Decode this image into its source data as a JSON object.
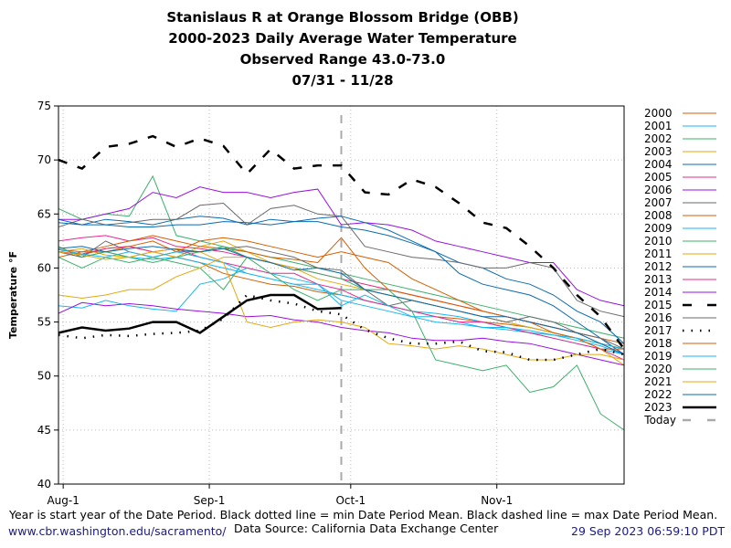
{
  "title_lines": [
    "Stanislaus R at Orange Blossom Bridge (OBB)",
    "2000-2023 Daily Average Water Temperature",
    "Observed Range 43.0-73.0",
    "07/31 - 11/28"
  ],
  "footer": {
    "note": "Year is start year of the Date Period. Black dotted line = min Date Period Mean. Black dashed line = max Date Period Mean.",
    "link": "www.cbr.washington.edu/sacramento/",
    "source": "Data Source: California Data Exchange Center",
    "timestamp": "29 Sep 2023 06:59:10 PDT"
  },
  "chart_data": {
    "type": "line",
    "ylabel": "Temperature °F",
    "xlabel": "",
    "ylim": [
      40,
      75
    ],
    "yticks": [
      40,
      45,
      50,
      55,
      60,
      65,
      70,
      75
    ],
    "x_range": [
      "07/31",
      "11/28"
    ],
    "x_days_step": 5,
    "xticks": [
      {
        "label": "Aug-1",
        "day": 1
      },
      {
        "label": "Sep-1",
        "day": 32
      },
      {
        "label": "Oct-1",
        "day": 62
      },
      {
        "label": "Nov-1",
        "day": 93
      }
    ],
    "grid": true,
    "legend": "right",
    "today": {
      "label": "Today",
      "day": 60,
      "color": "#aaaaaa"
    },
    "series": [
      {
        "name": "2000",
        "color": "#d55e00",
        "values": [
          61.5,
          61.2,
          61.8,
          62,
          61.5,
          61,
          60.5,
          59.5,
          59,
          58.5,
          58.3,
          57.8,
          57.5,
          57,
          56.5,
          56,
          55.5,
          55.3,
          55,
          54.8,
          54.5,
          54,
          53.5,
          53,
          52.5
        ]
      },
      {
        "name": "2001",
        "color": "#1ab6f0",
        "values": [
          61.5,
          61,
          61.5,
          61,
          60.8,
          61,
          60.5,
          60,
          59.5,
          59,
          58.5,
          58,
          57.5,
          57,
          56.5,
          56,
          55.8,
          55.5,
          55,
          54.5,
          54,
          53.8,
          53.3,
          52.8,
          52
        ]
      },
      {
        "name": "2002",
        "color": "#3bb06b",
        "values": [
          65.5,
          64.5,
          65,
          64.8,
          68.5,
          63,
          62.5,
          62,
          61.5,
          61,
          60.5,
          60,
          59.5,
          59,
          58.5,
          58,
          57.5,
          57,
          56.5,
          56,
          55.5,
          55,
          54.5,
          54,
          53.5
        ]
      },
      {
        "name": "2003",
        "color": "#e5a810",
        "values": [
          61.5,
          61.8,
          61.2,
          61,
          61.5,
          61,
          62,
          62.5,
          61.5,
          60.5,
          60,
          59.5,
          59,
          58.5,
          58,
          57.5,
          57,
          56.5,
          56,
          55.5,
          55,
          54.5,
          54,
          53,
          52.5
        ]
      },
      {
        "name": "2004",
        "color": "#0a6bb0",
        "values": [
          64.2,
          64,
          64.5,
          64.3,
          64,
          64.5,
          64.8,
          64.6,
          64,
          64.5,
          64.3,
          64.3,
          63.8,
          63.5,
          63,
          62.3,
          61.5,
          60.5,
          60,
          59,
          58.5,
          57.5,
          56,
          55,
          53
        ]
      },
      {
        "name": "2005",
        "color": "#e8278f",
        "values": [
          62.5,
          62.8,
          63,
          62.5,
          62.8,
          62,
          61.8,
          61.5,
          61,
          60.5,
          60,
          59.5,
          59,
          58.5,
          58,
          57.5,
          57,
          56.5,
          56,
          55.5,
          55,
          54.5,
          54,
          53.5,
          52
        ]
      },
      {
        "name": "2006",
        "color": "#9a10e0",
        "values": [
          64.5,
          64.5,
          65,
          65.5,
          67,
          66.5,
          67.5,
          67,
          67,
          66.5,
          67,
          67.3,
          64,
          64.2,
          64,
          63.5,
          62.5,
          62,
          61.5,
          61,
          60.5,
          60.5,
          58,
          57,
          56.5
        ]
      },
      {
        "name": "2007",
        "color": "#6a6a6a",
        "values": [
          63.8,
          64.5,
          64,
          64.2,
          64.5,
          64.5,
          65.8,
          66,
          64,
          65.5,
          65.8,
          65,
          64.8,
          62,
          61.5,
          61,
          60.8,
          60.5,
          60,
          60,
          60.5,
          60,
          57,
          56,
          55.5
        ]
      },
      {
        "name": "2008",
        "color": "#d55e00",
        "values": [
          61,
          61.5,
          62,
          62.5,
          63,
          62.5,
          62,
          61.8,
          61.5,
          61,
          60.8,
          60.5,
          62.8,
          60,
          58,
          57.5,
          57,
          56.5,
          56,
          55.5,
          55,
          54.5,
          54,
          53.5,
          53
        ]
      },
      {
        "name": "2009",
        "color": "#1ab6f0",
        "values": [
          56.5,
          56.3,
          57,
          56.5,
          56.2,
          56,
          58.5,
          59,
          60,
          59.5,
          59,
          58.5,
          57,
          56.5,
          56,
          55.5,
          55.5,
          55,
          54.5,
          54.3,
          54,
          53.5,
          53,
          52.5,
          52
        ]
      },
      {
        "name": "2010",
        "color": "#3bb06b",
        "values": [
          61,
          60,
          61,
          60.5,
          61,
          60.5,
          60,
          58,
          61,
          60.5,
          60,
          59.5,
          59,
          58,
          57.5,
          57,
          56.5,
          56,
          55.5,
          55,
          54.5,
          54,
          53.5,
          53,
          52.5
        ]
      },
      {
        "name": "2011",
        "color": "#e5a810",
        "values": [
          57.5,
          57.2,
          57.5,
          58,
          58,
          59.2,
          60,
          61,
          61,
          60.5,
          60,
          59,
          58.5,
          58,
          57.5,
          57,
          56.5,
          56,
          55.5,
          55,
          54.5,
          54,
          53.5,
          52.5,
          51
        ]
      },
      {
        "name": "2012",
        "color": "#0a6bb0",
        "values": [
          64.5,
          64,
          64,
          63.8,
          63.8,
          64,
          64,
          64.3,
          64.2,
          64,
          64.3,
          64.6,
          64.8,
          64.2,
          63.5,
          62.5,
          61.5,
          59.5,
          58.5,
          58,
          57.5,
          56.5,
          55,
          53.5,
          52
        ]
      },
      {
        "name": "2013",
        "color": "#e8278f",
        "values": [
          61.5,
          61.3,
          61.8,
          62,
          61.5,
          61.8,
          61,
          60.5,
          60,
          59.5,
          59.5,
          58.5,
          58,
          57,
          56.5,
          56,
          55.5,
          55,
          55,
          54.5,
          54,
          53.5,
          53,
          52.5,
          51.5
        ]
      },
      {
        "name": "2014",
        "color": "#9a10e0",
        "values": [
          55.8,
          56.8,
          56.5,
          56.7,
          56.5,
          56.2,
          56,
          55.8,
          55.5,
          55.6,
          55.2,
          55,
          54.5,
          54.2,
          54,
          53.5,
          53.3,
          53.3,
          53.5,
          53.2,
          53,
          52.5,
          52,
          51.5,
          51
        ]
      },
      {
        "name": "2015",
        "color": "#000000",
        "style": "dashed",
        "values": [
          70,
          69.2,
          71.2,
          71.5,
          72.2,
          71.2,
          72,
          71.3,
          68.7,
          71,
          69.2,
          69.5,
          69.5,
          67,
          66.8,
          68.2,
          67.5,
          66,
          64.2,
          63.7,
          62,
          60,
          57.5,
          55.5,
          52.5
        ]
      },
      {
        "name": "2016",
        "color": "#6a6a6a",
        "values": [
          61.5,
          61,
          62.5,
          61.5,
          61,
          61.5,
          61.5,
          61.8,
          62,
          61.5,
          61,
          60,
          59.8,
          58,
          56.5,
          57,
          56.5,
          56,
          55.5,
          55,
          55.5,
          55,
          54,
          53.5,
          52.5
        ]
      },
      {
        "name": "2017",
        "color": "#000000",
        "style": "dotted",
        "values": [
          53.8,
          53.5,
          53.8,
          53.7,
          53.9,
          54,
          54.2,
          55.3,
          57.5,
          57,
          56.7,
          56,
          55.7,
          54.3,
          53.5,
          53,
          53,
          53.2,
          52.3,
          52.2,
          51.5,
          51.5,
          52,
          52.5,
          52
        ]
      },
      {
        "name": "2018",
        "color": "#d55e00",
        "values": [
          61.7,
          61.5,
          61.5,
          62,
          62.5,
          61.5,
          62.5,
          62.8,
          62.5,
          62,
          61.5,
          61,
          61.5,
          61,
          60.5,
          59,
          58,
          57,
          56,
          55.5,
          55,
          54,
          53.5,
          52.5,
          52.5
        ]
      },
      {
        "name": "2019",
        "color": "#1ab6f0",
        "values": [
          61.7,
          61.3,
          61,
          61.5,
          61,
          61.5,
          61,
          60.5,
          59.5,
          59,
          58.5,
          58.5,
          56.5,
          57.5,
          56.5,
          55.5,
          55,
          54.8,
          54.5,
          54.5,
          54.2,
          53.8,
          53.5,
          53,
          52.5
        ]
      },
      {
        "name": "2020",
        "color": "#3bb06b",
        "values": [
          62,
          61,
          61.5,
          61,
          60.5,
          61,
          61.5,
          62,
          61,
          59.5,
          58,
          57,
          58,
          58,
          58,
          56,
          51.5,
          51,
          50.5,
          51,
          48.5,
          49,
          51,
          46.5,
          45
        ]
      },
      {
        "name": "2021",
        "color": "#e5a810",
        "values": [
          61.5,
          61.2,
          60.8,
          61,
          61.5,
          61.8,
          61.5,
          60.5,
          55,
          54.5,
          55,
          55.2,
          55,
          54.5,
          53,
          52.8,
          52.5,
          52.8,
          52.5,
          52,
          51.5,
          51.5,
          52,
          52,
          51.5
        ]
      },
      {
        "name": "2022",
        "color": "#0a6bb0",
        "values": [
          61.8,
          62,
          61.5,
          61.8,
          62,
          61.7,
          61.5,
          61.8,
          61,
          60.5,
          59.8,
          60,
          59.5,
          58,
          57.5,
          57,
          56.5,
          56,
          55.5,
          55.5,
          55,
          54.5,
          54,
          53,
          52
        ]
      },
      {
        "name": "2023",
        "color": "#000000",
        "style": "bold",
        "values": [
          54,
          54.5,
          54.2,
          54.4,
          55,
          55,
          54,
          55.5,
          57,
          57.5,
          57.5,
          56.2,
          56.3
        ]
      }
    ]
  }
}
